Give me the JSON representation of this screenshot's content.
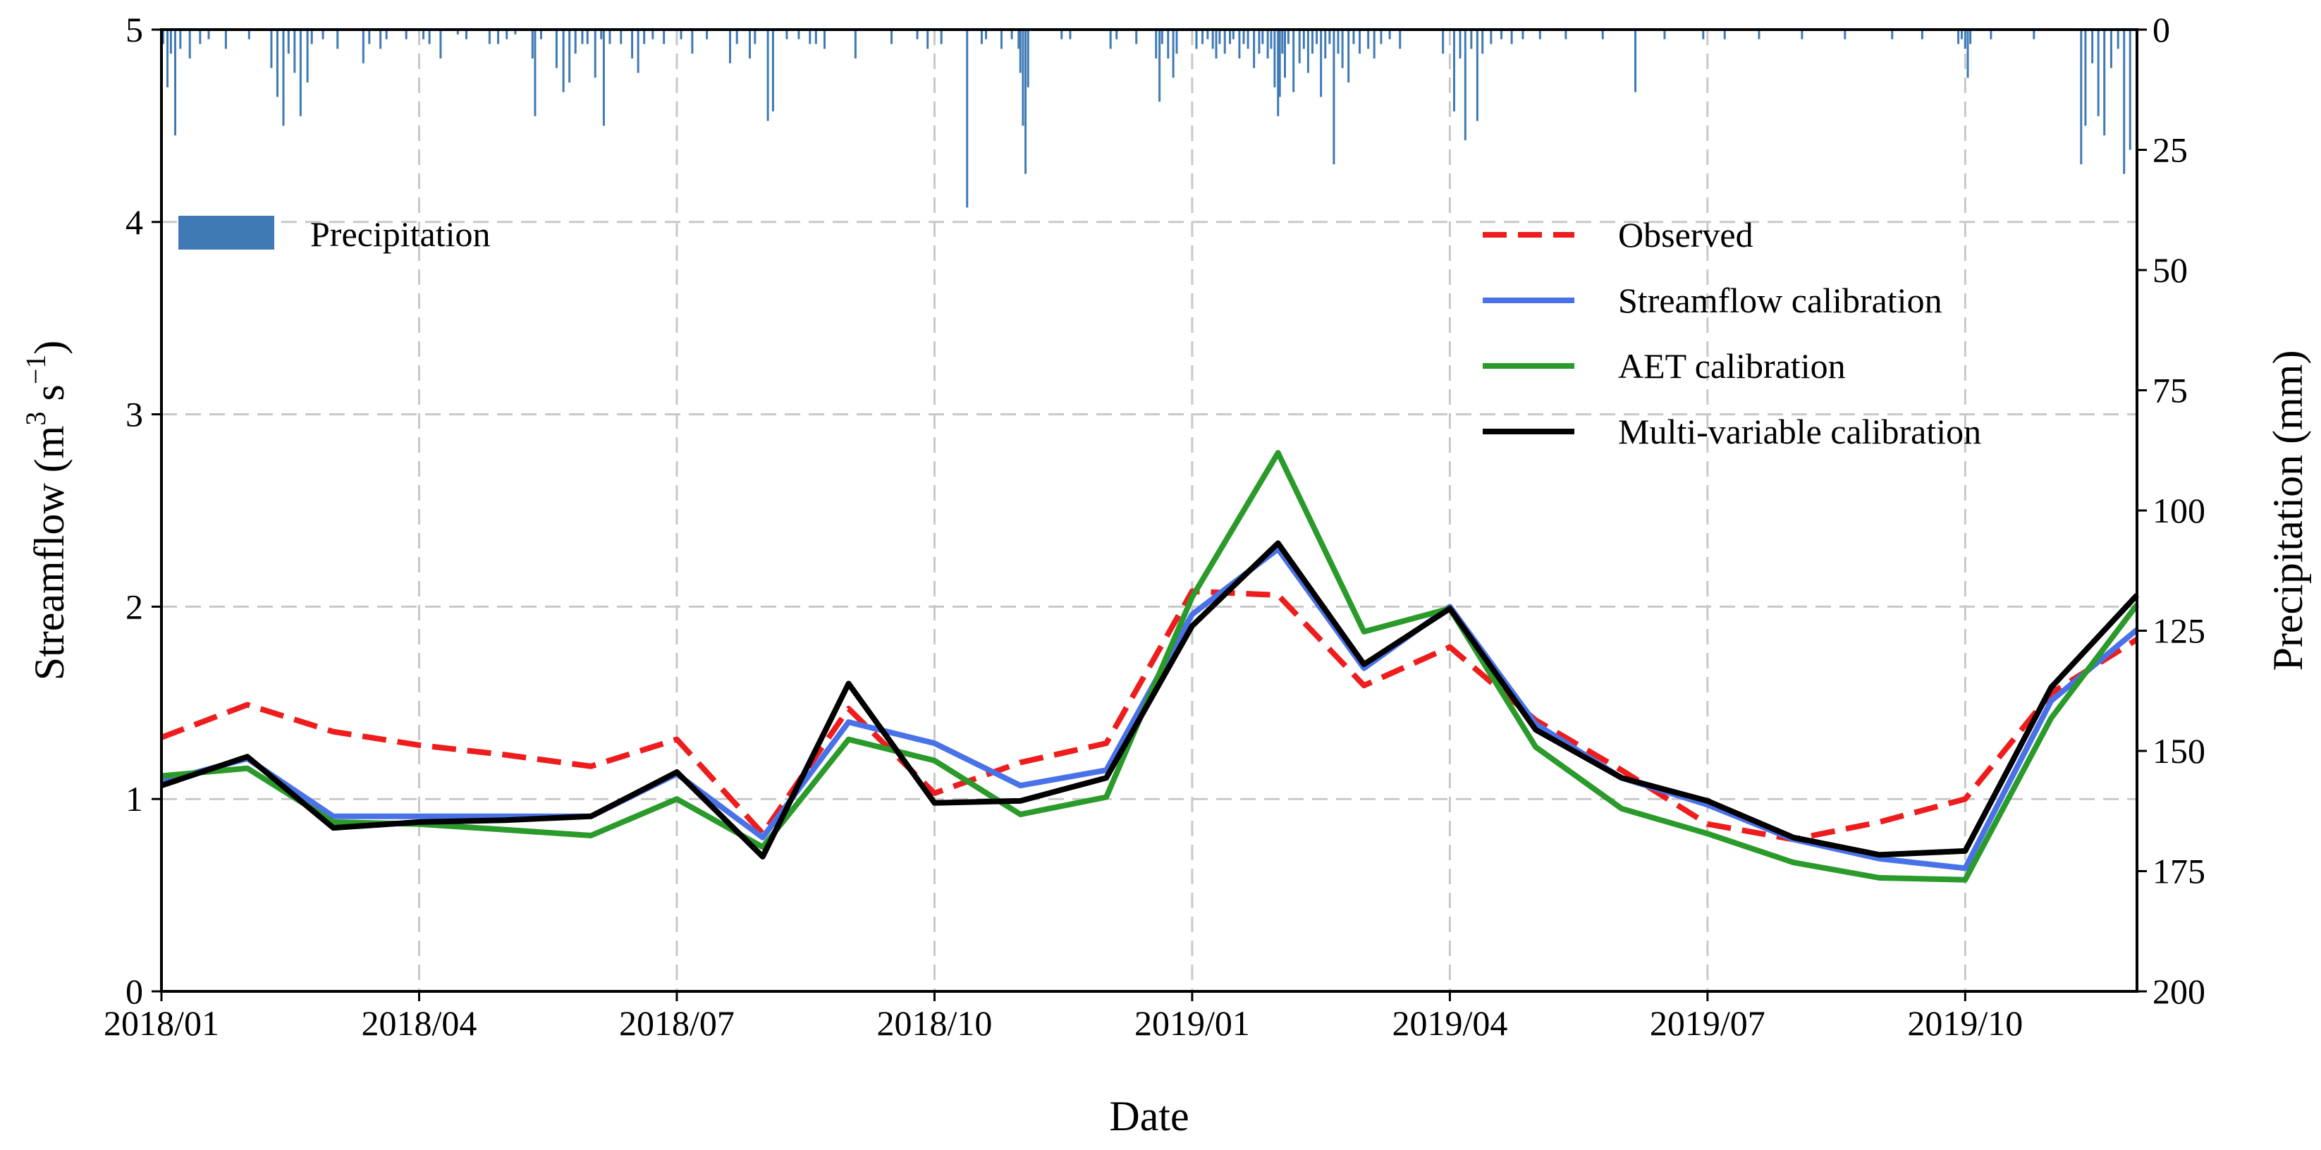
{
  "chart_data": {
    "type": "line",
    "xlabel": "Date",
    "ylabel": {
      "prefix": "Streamflow (m",
      "sup1": "3",
      "mid": " s",
      "sup2": "−1",
      "suffix": ")"
    },
    "y2label": "Precipitation (mm)",
    "ylim": [
      0,
      5
    ],
    "y2lim": [
      0,
      200
    ],
    "y2_inverted": true,
    "grid": true,
    "x_tick_labels": [
      "2018/01",
      "2018/04",
      "2018/07",
      "2018/10",
      "2019/01",
      "2019/04",
      "2019/07",
      "2019/10"
    ],
    "y_tick_labels": [
      "0",
      "1",
      "2",
      "3",
      "4",
      "5"
    ],
    "y2_tick_labels": [
      "0",
      "25",
      "50",
      "75",
      "100",
      "125",
      "150",
      "175",
      "200"
    ],
    "x_month_range": [
      0,
      23
    ],
    "series": [
      {
        "name": "Observed",
        "color": "#ee1c1c",
        "style": "dashed",
        "values": [
          1.32,
          1.49,
          1.35,
          1.28,
          1.23,
          1.17,
          1.31,
          0.82,
          1.47,
          1.03,
          1.19,
          1.29,
          2.08,
          2.06,
          1.59,
          1.79,
          1.41,
          1.15,
          0.87,
          0.79,
          0.88,
          1.0,
          1.55,
          1.83
        ]
      },
      {
        "name": "Streamflow calibration",
        "color": "#4a72e8",
        "style": "solid",
        "values": [
          1.09,
          1.21,
          0.91,
          0.91,
          0.91,
          0.91,
          1.13,
          0.8,
          1.4,
          1.29,
          1.07,
          1.15,
          1.96,
          2.3,
          1.68,
          2.0,
          1.39,
          1.11,
          0.97,
          0.79,
          0.69,
          0.64,
          1.51,
          1.88
        ]
      },
      {
        "name": "AET calibration",
        "color": "#2a9a2a",
        "style": "solid",
        "values": [
          1.12,
          1.16,
          0.88,
          0.87,
          0.84,
          0.81,
          1.0,
          0.75,
          1.31,
          1.2,
          0.92,
          1.01,
          2.05,
          2.8,
          1.87,
          1.99,
          1.27,
          0.95,
          0.82,
          0.67,
          0.59,
          0.58,
          1.42,
          2.01
        ]
      },
      {
        "name": "Multi-variable calibration",
        "color": "#000000",
        "style": "solid",
        "values": [
          1.07,
          1.22,
          0.85,
          0.88,
          0.89,
          0.91,
          1.14,
          0.7,
          1.6,
          0.98,
          0.99,
          1.11,
          1.9,
          2.33,
          1.7,
          1.99,
          1.36,
          1.11,
          0.99,
          0.8,
          0.71,
          0.73,
          1.58,
          2.06
        ]
      }
    ],
    "precipitation": {
      "name": "Precipitation",
      "color": "#3f7ab5",
      "unit": "mm",
      "events": [
        [
          0.02,
          3
        ],
        [
          0.07,
          12
        ],
        [
          0.11,
          5
        ],
        [
          0.16,
          22
        ],
        [
          0.22,
          4
        ],
        [
          0.33,
          6
        ],
        [
          0.45,
          3
        ],
        [
          0.55,
          2
        ],
        [
          0.75,
          4
        ],
        [
          1.02,
          2
        ],
        [
          1.28,
          8
        ],
        [
          1.35,
          14
        ],
        [
          1.42,
          20
        ],
        [
          1.48,
          5
        ],
        [
          1.55,
          9
        ],
        [
          1.62,
          18
        ],
        [
          1.7,
          11
        ],
        [
          1.75,
          3
        ],
        [
          1.88,
          2
        ],
        [
          2.05,
          4
        ],
        [
          2.35,
          7
        ],
        [
          2.42,
          3
        ],
        [
          2.55,
          4
        ],
        [
          2.62,
          2
        ],
        [
          2.85,
          2
        ],
        [
          3.05,
          2
        ],
        [
          3.12,
          3
        ],
        [
          3.25,
          6
        ],
        [
          3.45,
          1
        ],
        [
          3.55,
          2
        ],
        [
          3.82,
          3
        ],
        [
          3.92,
          3
        ],
        [
          4.02,
          2
        ],
        [
          4.12,
          1
        ],
        [
          4.32,
          6
        ],
        [
          4.35,
          18
        ],
        [
          4.42,
          2
        ],
        [
          4.6,
          8
        ],
        [
          4.68,
          13
        ],
        [
          4.75,
          11
        ],
        [
          4.82,
          5
        ],
        [
          4.9,
          3
        ],
        [
          4.96,
          3
        ],
        [
          5.05,
          10
        ],
        [
          5.12,
          2
        ],
        [
          5.15,
          20
        ],
        [
          5.22,
          3
        ],
        [
          5.35,
          3
        ],
        [
          5.48,
          6
        ],
        [
          5.55,
          9
        ],
        [
          5.62,
          3
        ],
        [
          5.72,
          2
        ],
        [
          5.85,
          3
        ],
        [
          6.05,
          2
        ],
        [
          6.18,
          5
        ],
        [
          6.35,
          2
        ],
        [
          6.62,
          7
        ],
        [
          6.7,
          3
        ],
        [
          6.85,
          6
        ],
        [
          6.91,
          3
        ],
        [
          7.06,
          19
        ],
        [
          7.12,
          17
        ],
        [
          7.28,
          2
        ],
        [
          7.42,
          2
        ],
        [
          7.55,
          3
        ],
        [
          7.62,
          3
        ],
        [
          7.72,
          4
        ],
        [
          8.08,
          6
        ],
        [
          8.5,
          3
        ],
        [
          8.8,
          2
        ],
        [
          8.92,
          4
        ],
        [
          9.08,
          3
        ],
        [
          9.38,
          37
        ],
        [
          9.55,
          3
        ],
        [
          9.6,
          2
        ],
        [
          9.78,
          4
        ],
        [
          9.9,
          2
        ],
        [
          9.98,
          4
        ],
        [
          10.0,
          9
        ],
        [
          10.03,
          20
        ],
        [
          10.06,
          30
        ],
        [
          10.09,
          12
        ],
        [
          10.48,
          2
        ],
        [
          10.58,
          2
        ],
        [
          11.05,
          4
        ],
        [
          11.12,
          2
        ],
        [
          11.35,
          3
        ],
        [
          11.58,
          6
        ],
        [
          11.62,
          15
        ],
        [
          11.65,
          3
        ],
        [
          11.72,
          6
        ],
        [
          11.78,
          10
        ],
        [
          11.82,
          5
        ],
        [
          12.05,
          4
        ],
        [
          12.12,
          3
        ],
        [
          12.18,
          2
        ],
        [
          12.24,
          4
        ],
        [
          12.28,
          6
        ],
        [
          12.32,
          3
        ],
        [
          12.38,
          5
        ],
        [
          12.44,
          3
        ],
        [
          12.48,
          2
        ],
        [
          12.55,
          6
        ],
        [
          12.6,
          3
        ],
        [
          12.65,
          4
        ],
        [
          12.72,
          8
        ],
        [
          12.78,
          5
        ],
        [
          12.82,
          3
        ],
        [
          12.88,
          6
        ],
        [
          12.92,
          4
        ],
        [
          12.96,
          12
        ],
        [
          13.0,
          18
        ],
        [
          13.02,
          14
        ],
        [
          13.05,
          5
        ],
        [
          13.08,
          10
        ],
        [
          13.12,
          3
        ],
        [
          13.18,
          13
        ],
        [
          13.25,
          7
        ],
        [
          13.3,
          4
        ],
        [
          13.35,
          9
        ],
        [
          13.4,
          5
        ],
        [
          13.45,
          3
        ],
        [
          13.5,
          14
        ],
        [
          13.55,
          6
        ],
        [
          13.6,
          3
        ],
        [
          13.65,
          28
        ],
        [
          13.7,
          5
        ],
        [
          13.75,
          8
        ],
        [
          13.82,
          11
        ],
        [
          13.88,
          3
        ],
        [
          13.95,
          5
        ],
        [
          14.05,
          4
        ],
        [
          14.12,
          6
        ],
        [
          14.2,
          3
        ],
        [
          14.3,
          2
        ],
        [
          14.42,
          4
        ],
        [
          14.92,
          5
        ],
        [
          15.05,
          17
        ],
        [
          15.12,
          6
        ],
        [
          15.18,
          23
        ],
        [
          15.25,
          4
        ],
        [
          15.32,
          19
        ],
        [
          15.38,
          5
        ],
        [
          15.48,
          3
        ],
        [
          15.6,
          2
        ],
        [
          15.72,
          3
        ],
        [
          15.85,
          2
        ],
        [
          16.05,
          2
        ],
        [
          16.35,
          2
        ],
        [
          16.78,
          2
        ],
        [
          17.16,
          13
        ],
        [
          17.5,
          2
        ],
        [
          17.95,
          2
        ],
        [
          18.2,
          2
        ],
        [
          18.6,
          2
        ],
        [
          19.1,
          2
        ],
        [
          19.6,
          2
        ],
        [
          20.15,
          2
        ],
        [
          20.5,
          2
        ],
        [
          20.92,
          3
        ],
        [
          20.96,
          2
        ],
        [
          21.0,
          4
        ],
        [
          21.03,
          10
        ],
        [
          21.06,
          3
        ],
        [
          21.3,
          2
        ],
        [
          21.8,
          2
        ],
        [
          22.35,
          28
        ],
        [
          22.4,
          20
        ],
        [
          22.48,
          7
        ],
        [
          22.55,
          18
        ],
        [
          22.62,
          22
        ],
        [
          22.7,
          8
        ],
        [
          22.78,
          4
        ],
        [
          22.85,
          30
        ],
        [
          22.92,
          25
        ],
        [
          23.0,
          12
        ],
        [
          23.05,
          5
        ]
      ]
    }
  }
}
